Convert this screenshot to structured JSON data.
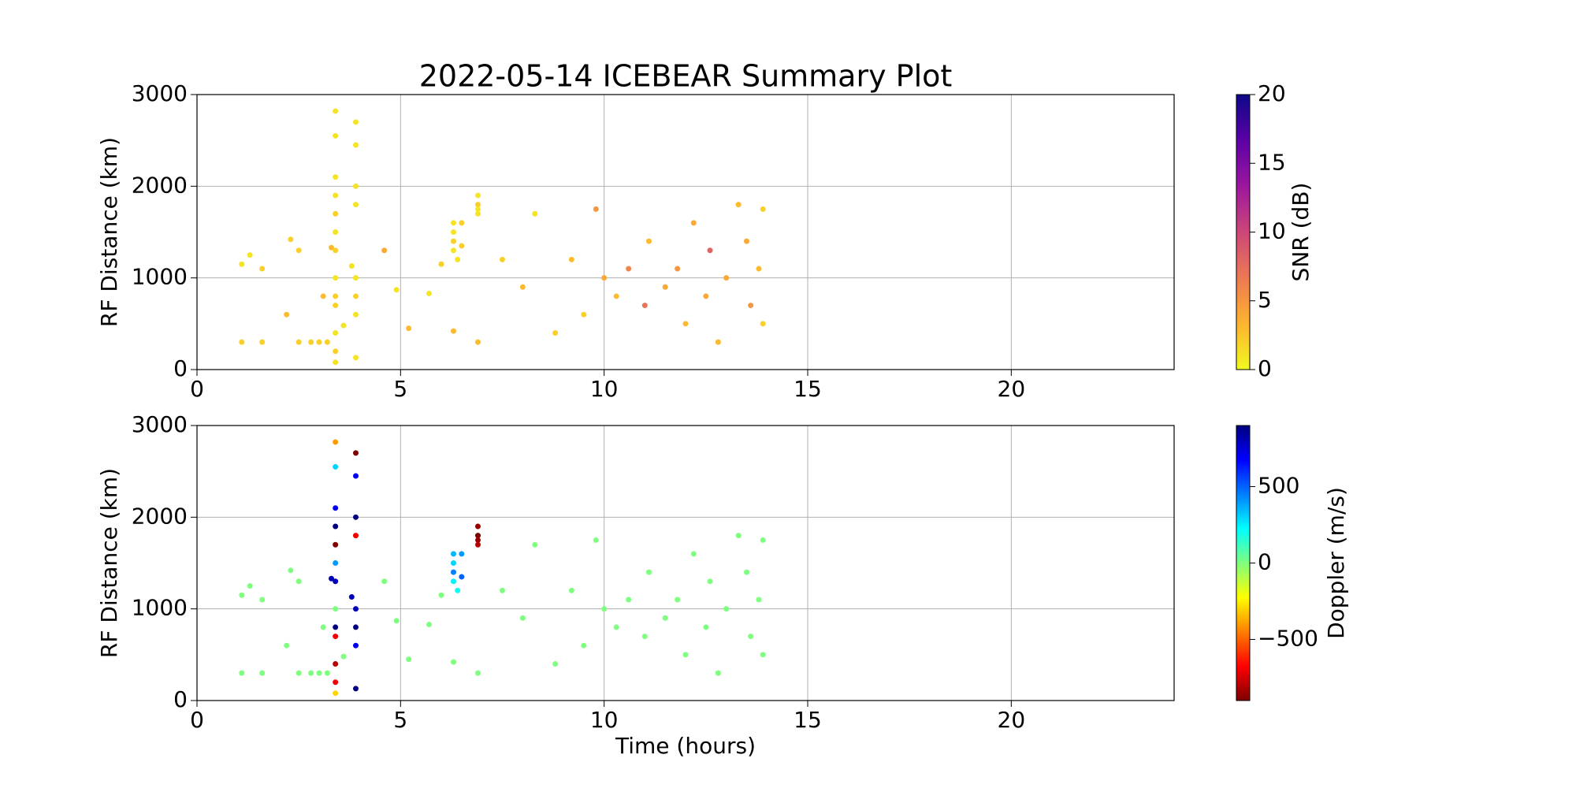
{
  "chart_data": [
    {
      "type": "scatter",
      "title": "2022-05-14 ICEBEAR Summary Plot",
      "ylabel": "RF Distance (km)",
      "xlim": [
        0,
        24
      ],
      "xticks": [
        0,
        5,
        10,
        15,
        20
      ],
      "ylim": [
        0,
        3000
      ],
      "yticks": [
        0,
        1000,
        2000,
        3000
      ],
      "grid": true,
      "x": [
        1.1,
        1.1,
        1.3,
        1.6,
        1.6,
        2.2,
        2.3,
        2.5,
        2.5,
        2.8,
        3.0,
        3.1,
        3.2,
        3.3,
        3.4,
        3.4,
        3.4,
        3.4,
        3.4,
        3.4,
        3.4,
        3.4,
        3.4,
        3.4,
        3.4,
        3.4,
        3.4,
        3.6,
        3.8,
        3.9,
        3.9,
        3.9,
        3.9,
        3.9,
        3.9,
        3.9,
        3.9,
        4.6,
        4.9,
        5.2,
        5.7,
        6.0,
        6.3,
        6.3,
        6.3,
        6.3,
        6.4,
        6.3,
        6.5,
        6.5,
        6.9,
        6.9,
        6.9,
        6.9,
        6.9,
        7.5,
        8.0,
        8.3,
        8.8,
        9.2,
        9.5,
        9.8,
        10.0,
        10.3,
        10.6,
        11.0,
        11.1,
        11.5,
        11.8,
        12.0,
        12.2,
        12.5,
        12.6,
        12.8,
        13.0,
        13.3,
        13.5,
        13.6,
        13.8,
        13.9,
        13.9
      ],
      "y": [
        300,
        1150,
        1250,
        300,
        1100,
        600,
        1420,
        300,
        1300,
        300,
        300,
        800,
        300,
        1330,
        2820,
        2550,
        2100,
        1900,
        1700,
        1500,
        1300,
        1000,
        800,
        700,
        400,
        200,
        80,
        480,
        1130,
        2700,
        2450,
        2000,
        1800,
        1000,
        800,
        600,
        130,
        1300,
        870,
        450,
        830,
        1150,
        1600,
        1500,
        1400,
        1300,
        1200,
        420,
        1600,
        1350,
        1900,
        1800,
        1750,
        1700,
        300,
        1200,
        900,
        1700,
        400,
        1200,
        600,
        1750,
        1000,
        800,
        1100,
        700,
        1400,
        900,
        1100,
        500,
        1600,
        800,
        1300,
        300,
        1000,
        1800,
        1400,
        700,
        1100,
        1750,
        500
      ],
      "c": [
        2,
        1,
        1,
        2,
        2,
        3,
        2,
        2,
        2,
        2,
        2,
        3,
        2,
        3,
        1,
        1,
        1,
        1,
        2,
        1,
        2,
        1,
        2,
        2,
        1,
        2,
        1,
        1,
        1,
        1,
        1,
        1,
        1,
        1,
        2,
        1,
        1,
        4,
        1,
        3,
        1,
        2,
        1,
        1,
        2,
        1,
        1,
        3,
        2,
        2,
        1,
        2,
        1,
        1,
        3,
        2,
        3,
        1,
        2,
        3,
        2,
        5,
        4,
        3,
        6,
        7,
        3,
        4,
        5,
        3,
        4,
        4,
        8,
        3,
        4,
        3,
        4,
        5,
        3,
        2,
        2
      ],
      "colorbar": {
        "label": "SNR (dB)",
        "lim": [
          0,
          20
        ],
        "ticks": [
          0,
          5,
          10,
          15,
          20
        ],
        "colormap": [
          "#f0f921",
          "#fdb42f",
          "#ed7953",
          "#cc4778",
          "#9c179e",
          "#5c01a6",
          "#0d0887"
        ]
      }
    },
    {
      "type": "scatter",
      "ylabel": "RF Distance (km)",
      "xlabel": "Time (hours)",
      "xlim": [
        0,
        24
      ],
      "xticks": [
        0,
        5,
        10,
        15,
        20
      ],
      "ylim": [
        0,
        3000
      ],
      "yticks": [
        0,
        1000,
        2000,
        3000
      ],
      "grid": true,
      "x": [
        1.1,
        1.1,
        1.3,
        1.6,
        1.6,
        2.2,
        2.3,
        2.5,
        2.5,
        2.8,
        3.0,
        3.1,
        3.2,
        3.3,
        3.4,
        3.4,
        3.4,
        3.4,
        3.4,
        3.4,
        3.4,
        3.4,
        3.4,
        3.4,
        3.4,
        3.4,
        3.4,
        3.6,
        3.8,
        3.9,
        3.9,
        3.9,
        3.9,
        3.9,
        3.9,
        3.9,
        3.9,
        4.6,
        4.9,
        5.2,
        5.7,
        6.0,
        6.3,
        6.3,
        6.3,
        6.3,
        6.4,
        6.3,
        6.5,
        6.5,
        6.9,
        6.9,
        6.9,
        6.9,
        6.9,
        7.5,
        8.0,
        8.3,
        8.8,
        9.2,
        9.5,
        9.8,
        10.0,
        10.3,
        10.6,
        11.0,
        11.1,
        11.5,
        11.8,
        12.0,
        12.2,
        12.5,
        12.6,
        12.8,
        13.0,
        13.3,
        13.5,
        13.6,
        13.8,
        13.9,
        13.9
      ],
      "y": [
        300,
        1150,
        1250,
        300,
        1100,
        600,
        1420,
        300,
        1300,
        300,
        300,
        800,
        300,
        1330,
        2820,
        2550,
        2100,
        1900,
        1700,
        1500,
        1300,
        1000,
        800,
        700,
        400,
        200,
        80,
        480,
        1130,
        2700,
        2450,
        2000,
        1800,
        1000,
        800,
        600,
        130,
        1300,
        870,
        450,
        830,
        1150,
        1600,
        1500,
        1400,
        1300,
        1200,
        420,
        1600,
        1350,
        1900,
        1800,
        1750,
        1700,
        300,
        1200,
        900,
        1700,
        400,
        1200,
        600,
        1750,
        1000,
        800,
        1100,
        700,
        1400,
        900,
        1100,
        500,
        1600,
        800,
        1300,
        300,
        1000,
        1800,
        1400,
        700,
        1100,
        1750,
        500
      ],
      "c": [
        0,
        0,
        0,
        0,
        0,
        0,
        0,
        0,
        0,
        0,
        0,
        0,
        0,
        800,
        -400,
        300,
        700,
        900,
        -900,
        400,
        800,
        0,
        900,
        -700,
        -800,
        -700,
        -300,
        0,
        800,
        -900,
        700,
        900,
        -700,
        800,
        900,
        700,
        900,
        0,
        0,
        0,
        0,
        0,
        350,
        300,
        450,
        250,
        200,
        0,
        400,
        500,
        -850,
        -900,
        -850,
        -800,
        0,
        0,
        0,
        0,
        0,
        0,
        0,
        0,
        0,
        0,
        0,
        0,
        0,
        0,
        0,
        0,
        0,
        0,
        0,
        0,
        0,
        0,
        0,
        0,
        0,
        0,
        0
      ],
      "colorbar": {
        "label": "Doppler (m/s)",
        "lim": [
          -900,
          900
        ],
        "ticks": [
          {
            "value": -500,
            "label": "−500"
          },
          0,
          500
        ],
        "colormap": [
          "#7f0000",
          "#ff0000",
          "#ff7f00",
          "#ffff00",
          "#7fff7f",
          "#00ffff",
          "#007fff",
          "#0000ff",
          "#00007f"
        ]
      }
    }
  ]
}
